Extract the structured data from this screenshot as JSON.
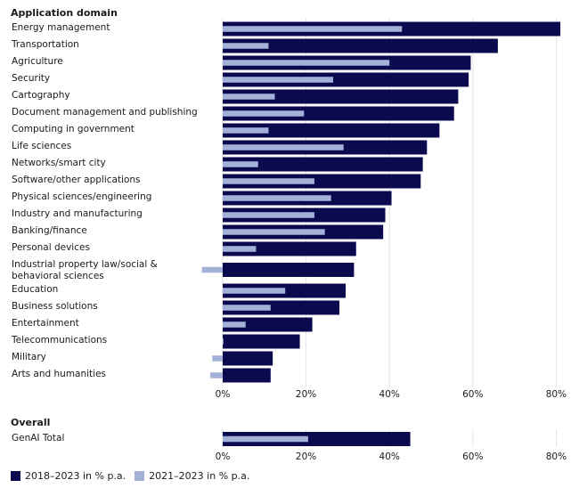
{
  "chart_data": [
    {
      "type": "bar",
      "orientation": "horizontal",
      "title": "Application domain",
      "categories": [
        "Energy management",
        "Transportation",
        "Agriculture",
        "Security",
        "Cartography",
        "Document management and publishing",
        "Computing in government",
        "Life sciences",
        "Networks/smart city",
        "Software/other applications",
        "Physical sciences/engineering",
        "Industry and manufacturing",
        "Banking/finance",
        "Personal devices",
        "Industrial property law/social & behavioral sciences",
        "Education",
        "Business solutions",
        "Entertainment",
        "Telecommunications",
        "Military",
        "Arts and humanities"
      ],
      "series": [
        {
          "name": "2018–2023 in % p.a.",
          "color": "#0b0a4e",
          "values": [
            81,
            66,
            59.5,
            59,
            56.5,
            55.5,
            52,
            49,
            48,
            47.5,
            40.5,
            39,
            38.5,
            32,
            31.5,
            29.5,
            28,
            21.5,
            18.5,
            12,
            11.5
          ]
        },
        {
          "name": "2021–2023 in % p.a.",
          "color": "#a3b1d8",
          "values": [
            43,
            11,
            40,
            26.5,
            12.5,
            19.5,
            11,
            29,
            8.5,
            22,
            26,
            22,
            24.5,
            8,
            -5,
            15,
            11.5,
            5.5,
            0,
            -2.5,
            -3
          ]
        }
      ],
      "xlim": [
        -5,
        82
      ],
      "xticks": [
        0,
        20,
        40,
        60,
        80
      ],
      "xtick_labels": [
        "0%",
        "20%",
        "40%",
        "60%",
        "80%"
      ],
      "grid": true
    },
    {
      "type": "bar",
      "orientation": "horizontal",
      "title": "Overall",
      "categories": [
        "GenAI Total"
      ],
      "series": [
        {
          "name": "2018–2023 in % p.a.",
          "color": "#0b0a4e",
          "values": [
            45
          ]
        },
        {
          "name": "2021–2023 in % p.a.",
          "color": "#a3b1d8",
          "values": [
            20.5
          ]
        }
      ],
      "xlim": [
        -5,
        82
      ],
      "xticks": [
        0,
        20,
        40,
        60,
        80
      ],
      "xtick_labels": [
        "0%",
        "20%",
        "40%",
        "60%",
        "80%"
      ],
      "grid": true
    }
  ],
  "legend": {
    "items": [
      {
        "label": "2018–2023 in % p.a.",
        "color": "#0b0a4e"
      },
      {
        "label": "2021–2023 in % p.a.",
        "color": "#a3b1d8"
      }
    ],
    "position": "bottom-left"
  }
}
